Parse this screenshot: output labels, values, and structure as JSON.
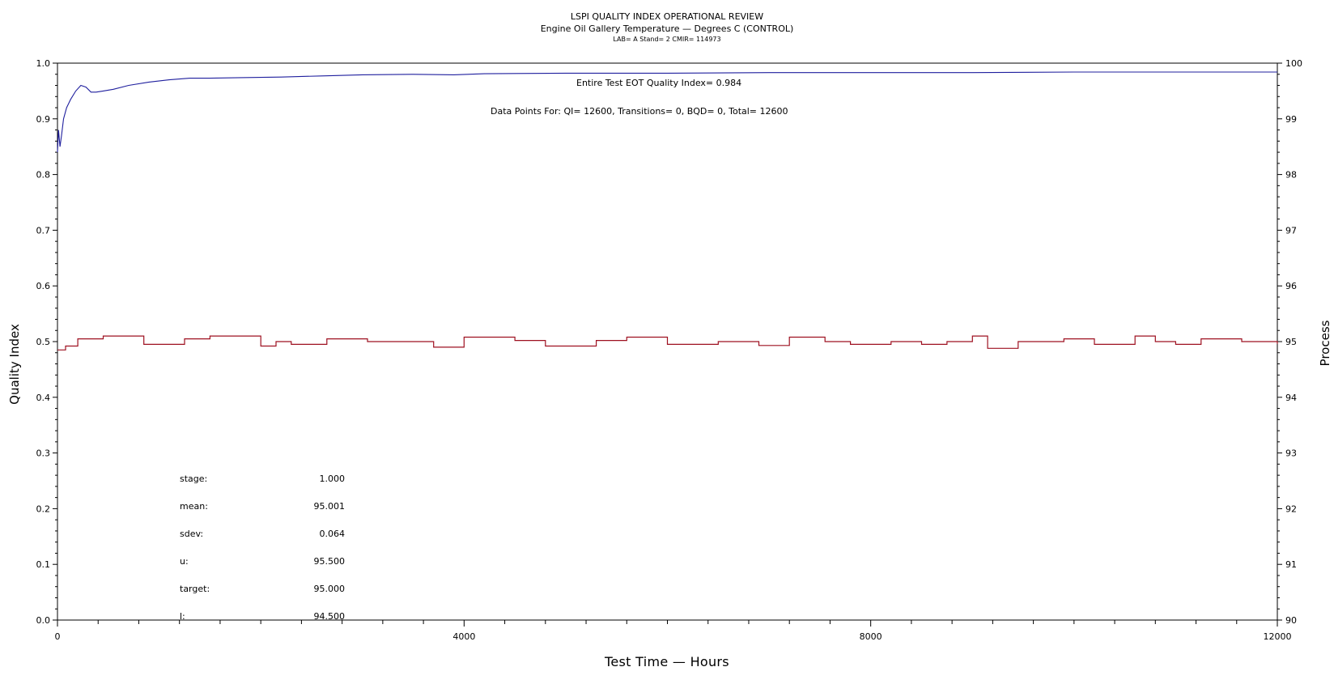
{
  "chart_data": {
    "type": "line",
    "title": "LSPI QUALITY INDEX OPERATIONAL REVIEW",
    "subtitle": "Engine Oil Gallery Temperature — Degrees C (CONTROL)",
    "caption": "LAB= A Stand= 2 CMIR= 114973",
    "xlabel": "Test Time — Hours",
    "ylabel": "Quality Index",
    "y2label": "Process",
    "xlim": [
      0,
      12000
    ],
    "ylim": [
      0.0,
      1.0
    ],
    "y2lim": [
      90,
      100
    ],
    "x_ticks": [
      0,
      4000,
      8000,
      12000
    ],
    "y_ticks": [
      "0.0",
      "0.1",
      "0.2",
      "0.3",
      "0.4",
      "0.5",
      "0.6",
      "0.7",
      "0.8",
      "0.9",
      "1.0"
    ],
    "y2_ticks": [
      "90",
      "91",
      "92",
      "93",
      "94",
      "95",
      "96",
      "97",
      "98",
      "99",
      "100"
    ],
    "grid": false,
    "annotations": {
      "quality_index": "Entire Test EOT Quality Index=   0.984",
      "data_points": "Data Points For: QI= 12600, Transitions=     0, BQD=     0, Total= 12600"
    },
    "stats": [
      {
        "label": "stage:",
        "value": "1.000"
      },
      {
        "label": "mean:",
        "value": "95.001"
      },
      {
        "label": "sdev:",
        "value": "0.064"
      },
      {
        "label": "u:",
        "value": "95.500"
      },
      {
        "label": "target:",
        "value": "95.000"
      },
      {
        "label": "l:",
        "value": "94.500"
      }
    ],
    "series": [
      {
        "axis": "left",
        "color": "#1f1f9e",
        "x": [
          0,
          10,
          25,
          40,
          60,
          90,
          130,
          180,
          230,
          280,
          330,
          380,
          450,
          550,
          700,
          900,
          1100,
          1300,
          1500,
          1800,
          2200,
          2600,
          3000,
          3500,
          3900,
          4200,
          5000,
          6000,
          7000,
          8000,
          9000,
          10000,
          11000,
          12000
        ],
        "values": [
          0.84,
          0.88,
          0.85,
          0.87,
          0.9,
          0.92,
          0.935,
          0.95,
          0.96,
          0.957,
          0.948,
          0.948,
          0.95,
          0.953,
          0.96,
          0.966,
          0.97,
          0.973,
          0.973,
          0.974,
          0.975,
          0.977,
          0.979,
          0.98,
          0.979,
          0.981,
          0.982,
          0.982,
          0.983,
          0.983,
          0.983,
          0.984,
          0.984,
          0.984
        ]
      },
      {
        "axis": "right",
        "color": "#9e1020",
        "x": [
          0,
          80,
          200,
          450,
          850,
          1250,
          1500,
          2000,
          2150,
          2300,
          2650,
          3050,
          3550,
          3700,
          4000,
          4500,
          4800,
          5300,
          5600,
          6000,
          6500,
          6900,
          7200,
          7550,
          7800,
          8200,
          8500,
          8750,
          9000,
          9150,
          9450,
          9900,
          10200,
          10600,
          10800,
          11000,
          11250,
          11650,
          12000
        ],
        "values": [
          94.85,
          94.92,
          95.05,
          95.1,
          94.95,
          95.05,
          95.1,
          94.92,
          95.0,
          94.95,
          95.05,
          95.0,
          95.0,
          94.9,
          95.08,
          95.02,
          94.92,
          95.02,
          95.08,
          94.95,
          95.0,
          94.93,
          95.08,
          95.0,
          94.95,
          95.0,
          94.95,
          95.0,
          95.1,
          94.88,
          95.0,
          95.05,
          94.95,
          95.1,
          95.0,
          94.95,
          95.05,
          95.0,
          94.96
        ]
      }
    ]
  }
}
